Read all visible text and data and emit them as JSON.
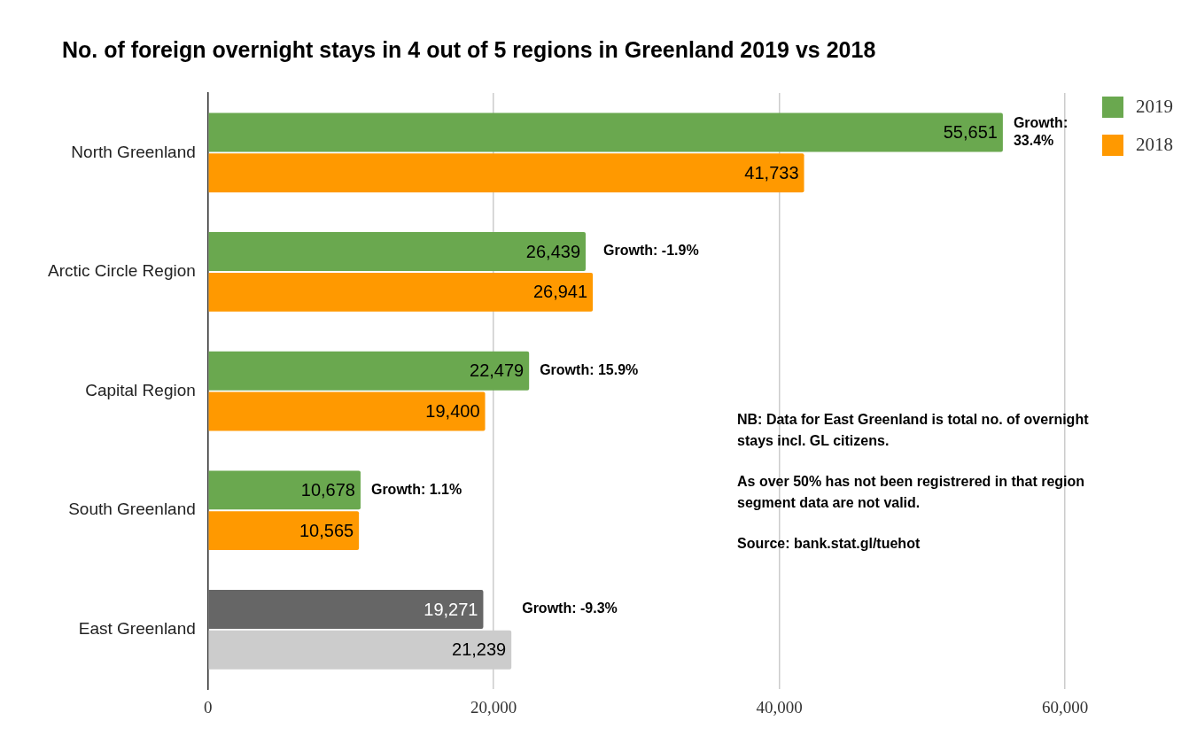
{
  "chart_data": {
    "type": "bar",
    "orientation": "horizontal",
    "title": "No. of foreign overnight stays in 4 out of 5 regions in Greenland 2019 vs 2018",
    "categories": [
      "North Greenland",
      "Arctic Circle Region",
      "Capital Region",
      "South Greenland",
      "East Greenland"
    ],
    "series": [
      {
        "name": "2019",
        "color": "#6aa84f",
        "colors": [
          "#6aa84f",
          "#6aa84f",
          "#6aa84f",
          "#6aa84f",
          "#666666"
        ],
        "values": [
          55651,
          26439,
          22479,
          10678,
          19271
        ],
        "value_labels": [
          "55,651",
          "26,439",
          "22,479",
          "10,678",
          "19,271"
        ]
      },
      {
        "name": "2018",
        "color": "#ff9900",
        "colors": [
          "#ff9900",
          "#ff9900",
          "#ff9900",
          "#ff9900",
          "#cccccc"
        ],
        "values": [
          41733,
          26941,
          19400,
          10565,
          21239
        ],
        "value_labels": [
          "41,733",
          "26,941",
          "19,400",
          "10,565",
          "21,239"
        ]
      }
    ],
    "xlim": [
      0,
      60000
    ],
    "xticks": [
      {
        "value": 0,
        "label": "0"
      },
      {
        "value": 20000,
        "label": "20,000"
      },
      {
        "value": 40000,
        "label": "40,000"
      },
      {
        "value": 60000,
        "label": "60,000"
      }
    ],
    "grid": "x",
    "legend": "top right",
    "annotations": [
      {
        "text": "Growth: 33.4%",
        "x": 55651,
        "y": "North Greenland"
      },
      {
        "text": "Growth: -1.9%",
        "x": 26941,
        "y": "Arctic Circle Region"
      },
      {
        "text": "Growth: 15.9%",
        "x": 22479,
        "y": "Capital Region"
      },
      {
        "text": "Growth: 1.1%",
        "x": 10678,
        "y": "South Greenland"
      },
      {
        "text": "Growth: -9.3%",
        "x": 21239,
        "y": "East Greenland"
      },
      "NB: Data for East Greenland is total no. of overnight stays incl. GL citizens.",
      "As over 50% has not been registrered in that region segment data are not valid.",
      "Source: bank.stat.gl/tuehot"
    ]
  }
}
